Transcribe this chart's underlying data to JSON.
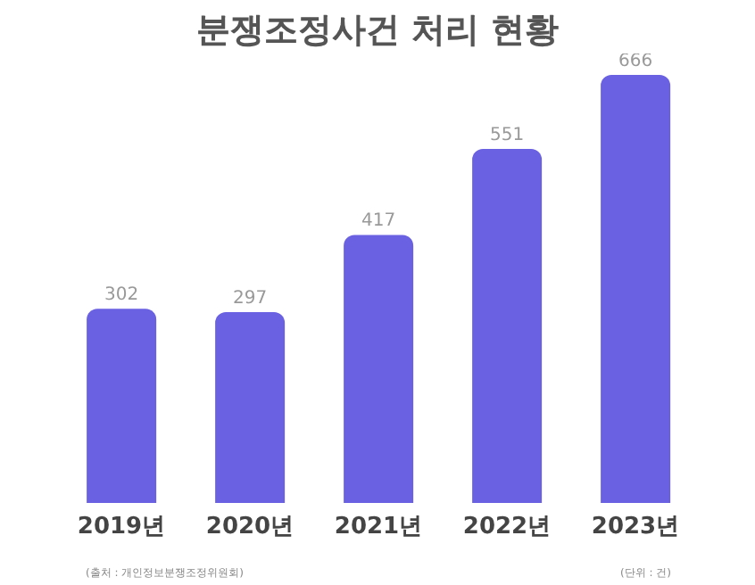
{
  "chart_data": {
    "type": "bar",
    "title": "분쟁조정사건 처리 현황",
    "categories": [
      "2019년",
      "2020년",
      "2021년",
      "2022년",
      "2023년"
    ],
    "values": [
      302,
      297,
      417,
      551,
      666
    ],
    "color": "#6a60e2",
    "data_labels": true,
    "annotations": [
      "(출처 : 개인정보분쟁조정위원회)",
      "(단위 : 건)"
    ]
  }
}
